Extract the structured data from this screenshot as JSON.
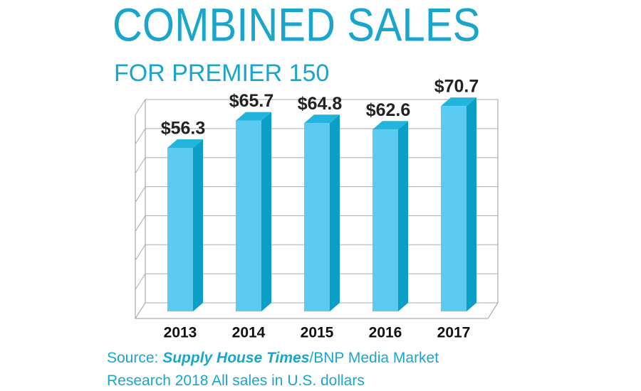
{
  "chart_data": {
    "type": "bar3d",
    "title": "COMBINED SALES",
    "subtitle": "FOR PREMIER 150",
    "categories": [
      "2013",
      "2014",
      "2015",
      "2016",
      "2017"
    ],
    "values": [
      56.3,
      65.7,
      64.8,
      62.6,
      70.7
    ],
    "value_labels": [
      "$56.3",
      "$65.7",
      "$64.8",
      "$62.6",
      "$70.7"
    ],
    "color": "#5ccbf2",
    "ylim": [
      0,
      70
    ],
    "yticks": [
      0,
      10,
      20,
      30,
      40,
      50,
      60,
      70
    ],
    "grid": true,
    "source": {
      "lines": [
        [
          "Source: ",
          "Supply House Times",
          "/BNP Media Market"
        ],
        [
          "Research 2018 All sales in U.S. dollars"
        ]
      ]
    }
  }
}
